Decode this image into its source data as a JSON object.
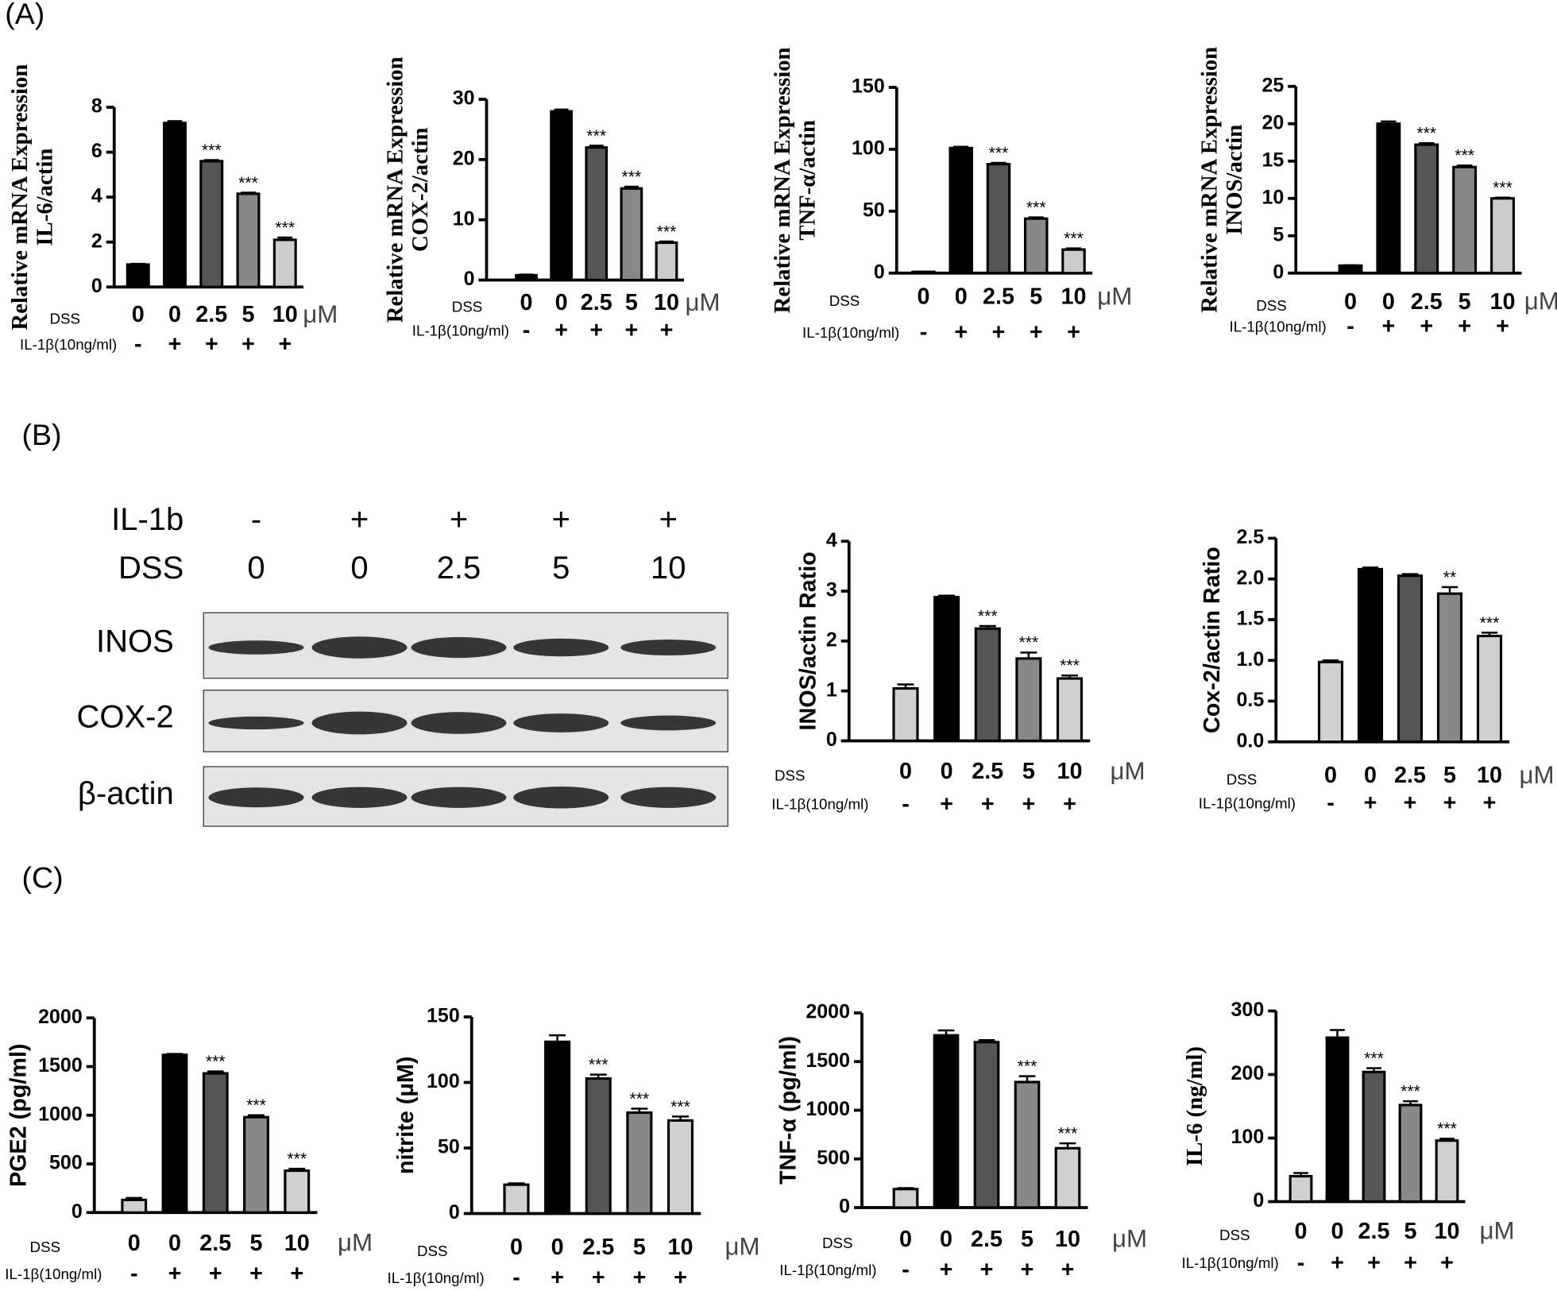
{
  "panels": [
    "(A)",
    "(B)",
    "(C)"
  ],
  "blot": {
    "treatment_label": "IL-1b",
    "treatment": [
      "-",
      "+",
      "+",
      "+",
      "+"
    ],
    "dose_label": "DSS",
    "doses": [
      "0",
      "0",
      "2.5",
      "5",
      "10"
    ],
    "rows": [
      "INOS",
      "COX-2",
      "β-actin"
    ]
  },
  "chart_data": [
    {
      "type": "bar",
      "ylabel": [
        "Relative mRNA Expression",
        "IL-6/actin"
      ],
      "row_label": "DSS",
      "categories": [
        "0",
        "0",
        "2.5",
        "5",
        "10"
      ],
      "unit": "μM",
      "treatment_label": "IL-1β(10ng/ml)",
      "treatment": [
        "-",
        "+",
        "+",
        "+",
        "+"
      ],
      "values": [
        1,
        7.3,
        5.6,
        4.15,
        2.1
      ],
      "errors": [
        0.03,
        0.08,
        0.05,
        0.05,
        0.1
      ],
      "annotations": [
        null,
        null,
        "***",
        "***",
        "***"
      ],
      "colors": [
        "#000000",
        "#000000",
        "#555555",
        "#888888",
        "#cccccc"
      ],
      "ylim": [
        0,
        8
      ],
      "yticks": [
        0,
        2,
        4,
        6,
        8
      ]
    },
    {
      "type": "bar",
      "ylabel": [
        "Relative mRNA Expression",
        "COX-2/actin"
      ],
      "row_label": "DSS",
      "categories": [
        "0",
        "0",
        "2.5",
        "5",
        "10"
      ],
      "unit": "μM",
      "treatment_label": "IL-1β(10ng/ml)",
      "treatment": [
        "-",
        "+",
        "+",
        "+",
        "+"
      ],
      "values": [
        0.8,
        28,
        22,
        15.2,
        6.2
      ],
      "errors": [
        0.1,
        0.3,
        0.3,
        0.3,
        0.2
      ],
      "annotations": [
        null,
        null,
        "***",
        "***",
        "***"
      ],
      "colors": [
        "#000000",
        "#000000",
        "#555555",
        "#888888",
        "#cccccc"
      ],
      "ylim": [
        0,
        30
      ],
      "yticks": [
        0,
        10,
        20,
        30
      ]
    },
    {
      "type": "bar",
      "ylabel": [
        "Relative mRNA Expression",
        "TNF-α/actin"
      ],
      "row_label": "DSS",
      "categories": [
        "0",
        "0",
        "2.5",
        "5",
        "10"
      ],
      "unit": "μM",
      "treatment_label": "IL-1β(10ng/ml)",
      "treatment": [
        "-",
        "+",
        "+",
        "+",
        "+"
      ],
      "values": [
        1,
        101,
        88,
        44,
        19
      ],
      "errors": [
        0.1,
        1,
        1,
        1,
        1
      ],
      "annotations": [
        null,
        null,
        "***",
        "***",
        "***"
      ],
      "colors": [
        "#000000",
        "#000000",
        "#555555",
        "#888888",
        "#cccccc"
      ],
      "ylim": [
        0,
        150
      ],
      "yticks": [
        0,
        50,
        100,
        150
      ]
    },
    {
      "type": "bar",
      "ylabel": [
        "Relative mRNA Expression",
        "INOS/actin"
      ],
      "row_label": "DSS",
      "categories": [
        "0",
        "0",
        "2.5",
        "5",
        "10"
      ],
      "unit": "μM",
      "treatment_label": "IL-1β(10ng/ml)",
      "treatment": [
        "-",
        "+",
        "+",
        "+",
        "+"
      ],
      "values": [
        1,
        20,
        17.2,
        14.2,
        10
      ],
      "errors": [
        0.05,
        0.3,
        0.2,
        0.2,
        0.1
      ],
      "annotations": [
        null,
        null,
        "***",
        "***",
        "***"
      ],
      "colors": [
        "#000000",
        "#000000",
        "#555555",
        "#888888",
        "#cccccc"
      ],
      "ylim": [
        0,
        25
      ],
      "yticks": [
        0,
        5,
        10,
        15,
        20,
        25
      ]
    },
    {
      "type": "bar",
      "ylabel": [
        "INOS/actin Ratio"
      ],
      "row_label": "DSS",
      "categories": [
        "0",
        "0",
        "2.5",
        "5",
        "10"
      ],
      "unit": "μM",
      "treatment_label": "IL-1β(10ng/ml)",
      "treatment": [
        "-",
        "+",
        "+",
        "+",
        "+"
      ],
      "values": [
        1.05,
        2.88,
        2.25,
        1.65,
        1.25
      ],
      "errors": [
        0.08,
        0.03,
        0.05,
        0.12,
        0.06
      ],
      "annotations": [
        null,
        null,
        "***",
        "***",
        "***"
      ],
      "colors": [
        "#d0d0d0",
        "#000000",
        "#555555",
        "#888888",
        "#d0d0d0"
      ],
      "ylim": [
        0,
        4
      ],
      "yticks": [
        0,
        1,
        2,
        3,
        4
      ]
    },
    {
      "type": "bar",
      "ylabel": [
        "Cox-2/actin Ratio"
      ],
      "row_label": "DSS",
      "categories": [
        "0",
        "0",
        "2.5",
        "5",
        "10"
      ],
      "unit": "μM",
      "treatment_label": "IL-1β(10ng/ml)",
      "treatment": [
        "-",
        "+",
        "+",
        "+",
        "+"
      ],
      "values": [
        0.98,
        2.12,
        2.04,
        1.82,
        1.3
      ],
      "errors": [
        0.02,
        0.02,
        0.02,
        0.08,
        0.04
      ],
      "annotations": [
        null,
        null,
        null,
        "**",
        "***"
      ],
      "colors": [
        "#d0d0d0",
        "#000000",
        "#555555",
        "#888888",
        "#d0d0d0"
      ],
      "ylim": [
        0,
        2.5
      ],
      "yticks": [
        {
          "value": 0,
          "label": "0.0"
        },
        0.5,
        {
          "value": 1,
          "label": "1.0"
        },
        1.5,
        {
          "value": 2,
          "label": "2.0"
        },
        2.5
      ]
    },
    {
      "type": "bar",
      "ylabel": [
        "PGE2 (pg/ml)"
      ],
      "row_label": "DSS",
      "categories": [
        "0",
        "0",
        "2.5",
        "5",
        "10"
      ],
      "unit": "μM",
      "treatment_label": "IL-1β(10ng/ml)",
      "treatment": [
        "-",
        "+",
        "+",
        "+",
        "+"
      ],
      "values": [
        130,
        1620,
        1430,
        980,
        430
      ],
      "errors": [
        20,
        10,
        20,
        20,
        20
      ],
      "annotations": [
        null,
        null,
        "***",
        "***",
        "***"
      ],
      "colors": [
        "#d0d0d0",
        "#000000",
        "#555555",
        "#888888",
        "#d0d0d0"
      ],
      "ylim": [
        0,
        2000
      ],
      "yticks": [
        0,
        500,
        1000,
        1500,
        2000
      ]
    },
    {
      "type": "bar",
      "ylabel": [
        "nitrite (μM)"
      ],
      "row_label": "DSS",
      "categories": [
        "0",
        "0",
        "2.5",
        "5",
        "10"
      ],
      "unit": "μM",
      "treatment_label": "IL-1β(10ng/ml)",
      "treatment": [
        "-",
        "+",
        "+",
        "+",
        "+"
      ],
      "values": [
        22,
        131,
        103,
        77,
        71
      ],
      "errors": [
        1,
        5,
        3,
        3,
        3
      ],
      "annotations": [
        null,
        null,
        "***",
        "***",
        "***"
      ],
      "colors": [
        "#d0d0d0",
        "#000000",
        "#555555",
        "#888888",
        "#d0d0d0"
      ],
      "ylim": [
        0,
        150
      ],
      "yticks": [
        0,
        50,
        100,
        150
      ]
    },
    {
      "type": "bar",
      "ylabel": [
        "TNF-α (pg/ml)"
      ],
      "row_label": "DSS",
      "categories": [
        "0",
        "0",
        "2.5",
        "5",
        "10"
      ],
      "unit": "μM",
      "treatment_label": "IL-1β(10ng/ml)",
      "treatment": [
        "-",
        "+",
        "+",
        "+",
        "+"
      ],
      "values": [
        190,
        1770,
        1700,
        1290,
        610
      ],
      "errors": [
        10,
        50,
        20,
        60,
        50
      ],
      "annotations": [
        null,
        null,
        null,
        "***",
        "***"
      ],
      "colors": [
        "#d0d0d0",
        "#000000",
        "#555555",
        "#888888",
        "#d0d0d0"
      ],
      "ylim": [
        0,
        2000
      ],
      "yticks": [
        0,
        500,
        1000,
        1500,
        2000
      ]
    },
    {
      "type": "bar",
      "ylabel": [
        "IL-6 (ng/ml)"
      ],
      "row_label": "DSS",
      "categories": [
        "0",
        "0",
        "2.5",
        "5",
        "10"
      ],
      "unit": "μM",
      "treatment_label": "IL-1β(10ng/ml)",
      "treatment": [
        "-",
        "+",
        "+",
        "+",
        "+"
      ],
      "values": [
        40,
        258,
        204,
        152,
        96
      ],
      "errors": [
        5,
        12,
        6,
        6,
        3
      ],
      "annotations": [
        null,
        null,
        "***",
        "***",
        "***"
      ],
      "colors": [
        "#d0d0d0",
        "#000000",
        "#555555",
        "#888888",
        "#d0d0d0"
      ],
      "ylim": [
        0,
        300
      ],
      "yticks": [
        0,
        100,
        200,
        300
      ]
    }
  ]
}
